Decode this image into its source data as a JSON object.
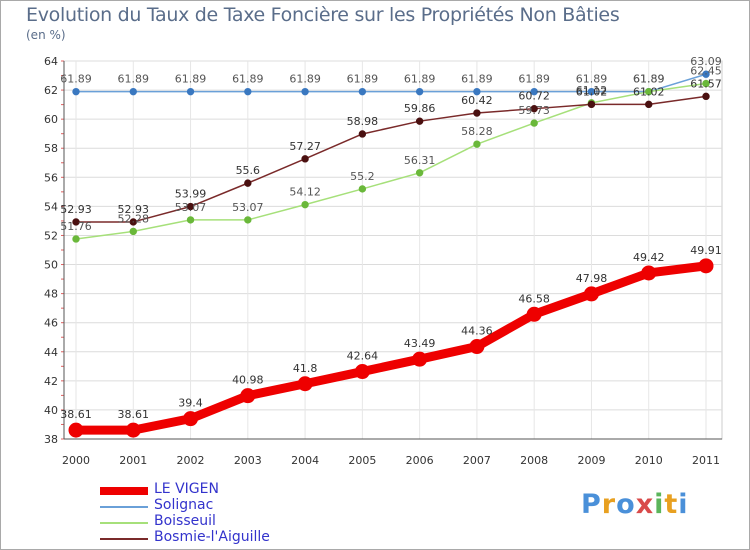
{
  "title": "Evolution du Taux de Taxe Foncière sur les Propriétés Non Bâties",
  "unit_label": "(en %)",
  "logo": {
    "text": "Proxiti",
    "letters": [
      {
        "ch": "P",
        "color": "#4a90d9"
      },
      {
        "ch": "r",
        "color": "#e8a020"
      },
      {
        "ch": "o",
        "color": "#4a90d9"
      },
      {
        "ch": "x",
        "color": "#d94a4a"
      },
      {
        "ch": "i",
        "color": "#5bb55b"
      },
      {
        "ch": "t",
        "color": "#e8a020"
      },
      {
        "ch": "i",
        "color": "#4a90d9"
      }
    ]
  },
  "chart_data": {
    "type": "line",
    "title": "Evolution du Taux de Taxe Foncière sur les Propriétés Non Bâties",
    "xlabel": "",
    "ylabel": "(en %)",
    "x": [
      "2000",
      "2001",
      "2002",
      "2003",
      "2004",
      "2005",
      "2006",
      "2007",
      "2008",
      "2009",
      "2010",
      "2011"
    ],
    "ylim": [
      38,
      64
    ],
    "yticks": [
      38,
      40,
      42,
      44,
      46,
      48,
      50,
      52,
      54,
      56,
      58,
      60,
      62,
      64
    ],
    "legend_position": "bottom-left",
    "series": [
      {
        "name": "LE VIGEN",
        "color": "#ee0000",
        "width": 9,
        "values": [
          38.61,
          38.61,
          39.4,
          40.98,
          41.8,
          42.64,
          43.49,
          44.36,
          46.58,
          47.98,
          49.42,
          49.91
        ],
        "labels": [
          "38.61",
          "38.61",
          "39.4",
          "40.98",
          "41.8",
          "42.64",
          "43.49",
          "44.36",
          "46.58",
          "47.98",
          "49.42",
          "49.91"
        ]
      },
      {
        "name": "Solignac",
        "color": "#6aa0d8",
        "width": 1.5,
        "values": [
          61.89,
          61.89,
          61.89,
          61.89,
          61.89,
          61.89,
          61.89,
          61.89,
          61.89,
          61.89,
          61.89,
          63.09
        ],
        "labels": [
          "61.89",
          "61.89",
          "61.89",
          "61.89",
          "61.89",
          "61.89",
          "61.89",
          "61.89",
          "61.89",
          "61.89",
          "61.89",
          "63.09"
        ]
      },
      {
        "name": "Boisseuil",
        "color": "#a6e07a",
        "width": 1.5,
        "values": [
          51.76,
          52.28,
          53.07,
          53.07,
          54.12,
          55.2,
          56.31,
          58.28,
          59.73,
          61.12,
          61.89,
          62.45
        ],
        "labels": [
          "51.76",
          "52.28",
          "53.07",
          "53.07",
          "54.12",
          "55.2",
          "56.31",
          "58.28",
          "59.73",
          "61.12",
          "61.89",
          "62.45"
        ]
      },
      {
        "name": "Bosmie-l'Aiguille",
        "color": "#7a2a2a",
        "width": 1.5,
        "values": [
          52.93,
          52.93,
          53.99,
          55.6,
          57.27,
          58.98,
          59.86,
          60.42,
          60.72,
          61.02,
          61.02,
          61.57
        ],
        "labels": [
          "52.93",
          "52.93",
          "53.99",
          "55.6",
          "57.27",
          "58.98",
          "59.86",
          "60.42",
          "60.72",
          "61.02",
          "61.02",
          "61.57"
        ]
      }
    ]
  }
}
